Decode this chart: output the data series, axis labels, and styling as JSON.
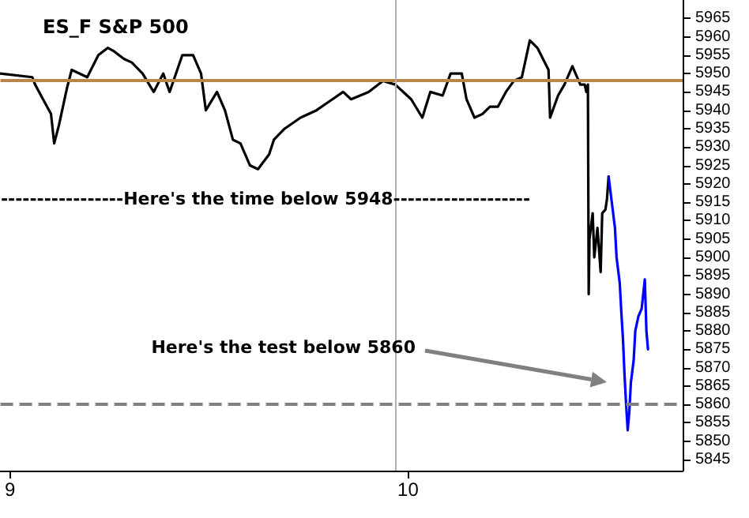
{
  "chart_data": {
    "type": "line",
    "title": "ES_F S&P 500",
    "xlim": [
      8.976,
      10.69
    ],
    "xticks": [
      9,
      10
    ],
    "ylim": [
      5842,
      5970
    ],
    "yticks": [
      5845,
      5850,
      5855,
      5860,
      5865,
      5870,
      5875,
      5880,
      5885,
      5890,
      5895,
      5900,
      5905,
      5910,
      5915,
      5920,
      5925,
      5930,
      5935,
      5940,
      5945,
      5950,
      5955,
      5960,
      5965
    ],
    "marker": "none",
    "line_style": "solid",
    "series": [
      {
        "color": "#000000",
        "x": [
          8.976,
          9.056,
          9.063,
          9.083,
          9.103,
          9.111,
          9.123,
          9.143,
          9.155,
          9.194,
          9.222,
          9.246,
          9.262,
          9.286,
          9.306,
          9.333,
          9.361,
          9.385,
          9.401,
          9.433,
          9.46,
          9.48,
          9.492,
          9.52,
          9.54,
          9.56,
          9.579,
          9.603,
          9.623,
          9.651,
          9.663,
          9.69,
          9.73,
          9.77,
          9.81,
          9.837,
          9.857,
          9.901,
          9.937,
          9.968,
          10.008,
          10.036,
          10.056,
          10.087,
          10.107,
          10.135,
          10.147,
          10.167,
          10.187,
          10.206,
          10.226,
          10.246,
          10.266,
          10.286,
          10.298,
          10.306,
          10.325,
          10.353,
          10.357,
          10.377,
          10.393,
          10.413,
          10.433,
          10.444,
          10.448,
          10.452,
          10.454,
          10.456,
          10.464,
          10.468,
          10.476,
          10.484,
          10.488,
          10.496,
          10.5,
          10.504
        ],
        "values": [
          5950,
          5949,
          5947,
          5943,
          5939,
          5931,
          5936,
          5946,
          5951,
          5949,
          5955,
          5957,
          5956,
          5954,
          5953,
          5950,
          5945,
          5950,
          5945,
          5955,
          5955,
          5950,
          5940,
          5945,
          5940,
          5932,
          5931,
          5925,
          5924,
          5928,
          5932,
          5935,
          5938,
          5940,
          5943,
          5945,
          5943,
          5945,
          5948,
          5947,
          5943,
          5938,
          5945,
          5944,
          5950,
          5950,
          5943,
          5938,
          5939,
          5941,
          5941,
          5945,
          5948,
          5949,
          5955,
          5959,
          5957,
          5951,
          5938,
          5944,
          5947,
          5952,
          5947,
          5947,
          5945,
          5947,
          5890,
          5905,
          5912,
          5900,
          5908,
          5896,
          5912,
          5913,
          5916,
          5922
        ]
      },
      {
        "color": "#0000ff",
        "x": [
          10.504,
          10.512,
          10.52,
          10.524,
          10.532,
          10.536,
          10.54,
          10.544,
          10.548,
          10.552,
          10.556,
          10.56,
          10.567,
          10.571,
          10.579,
          10.587,
          10.591,
          10.595,
          10.599,
          10.603
        ],
        "values": [
          5922,
          5915,
          5908,
          5900,
          5893,
          5885,
          5878,
          5868,
          5860,
          5853,
          5858,
          5866,
          5872,
          5880,
          5884,
          5886,
          5890,
          5894,
          5880,
          5875
        ]
      }
    ],
    "ref_lines": [
      {
        "axis": "y",
        "value": 5948,
        "color": "#b8864b",
        "line_style": "solid"
      },
      {
        "axis": "y",
        "value": 5860,
        "color": "#808080",
        "line_style": "dashed"
      },
      {
        "axis": "x",
        "value": 9.97,
        "color": "#b0b0b0",
        "line_style": "solid"
      }
    ],
    "annotations": [
      "-----------------Here's the time below 5948-------------------",
      "Here's the test below 5860"
    ]
  }
}
